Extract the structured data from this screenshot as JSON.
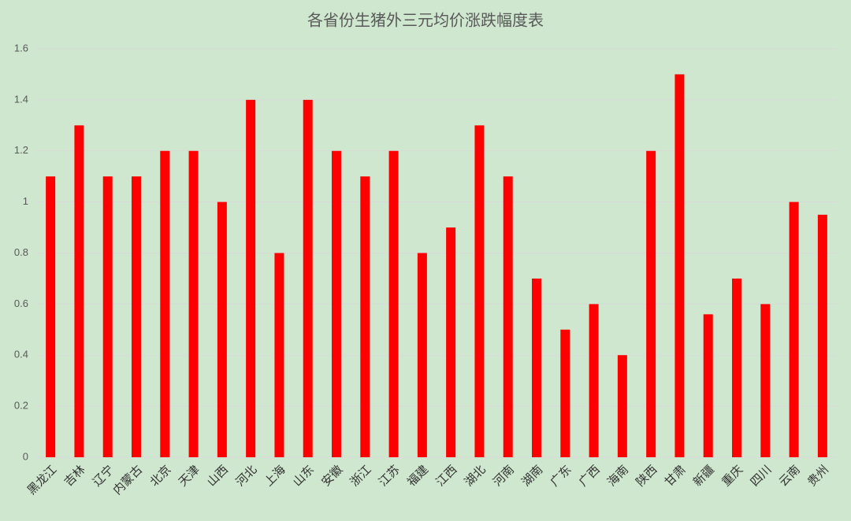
{
  "chart_data": {
    "type": "bar",
    "title": "各省份生猪外三元均价涨跌幅度表",
    "categories": [
      "黑龙江",
      "吉林",
      "辽宁",
      "内蒙古",
      "北京",
      "天津",
      "山西",
      "河北",
      "上海",
      "山东",
      "安徽",
      "浙江",
      "江苏",
      "福建",
      "江西",
      "湖北",
      "河南",
      "湖南",
      "广东",
      "广西",
      "海南",
      "陕西",
      "甘肃",
      "新疆",
      "重庆",
      "四川",
      "云南",
      "贵州"
    ],
    "values": [
      1.1,
      1.3,
      1.1,
      1.1,
      1.2,
      1.2,
      1.0,
      1.4,
      0.8,
      1.4,
      1.2,
      1.1,
      1.2,
      0.8,
      0.9,
      1.3,
      1.1,
      0.7,
      0.5,
      0.6,
      0.4,
      1.2,
      1.5,
      0.56,
      0.7,
      0.6,
      1.0,
      0.95
    ],
    "color": "#ff0000",
    "ylim": [
      0,
      1.6
    ],
    "yticks": [
      0,
      0.2,
      0.4,
      0.6,
      0.8,
      1,
      1.2,
      1.4,
      1.6
    ],
    "grid": true
  }
}
